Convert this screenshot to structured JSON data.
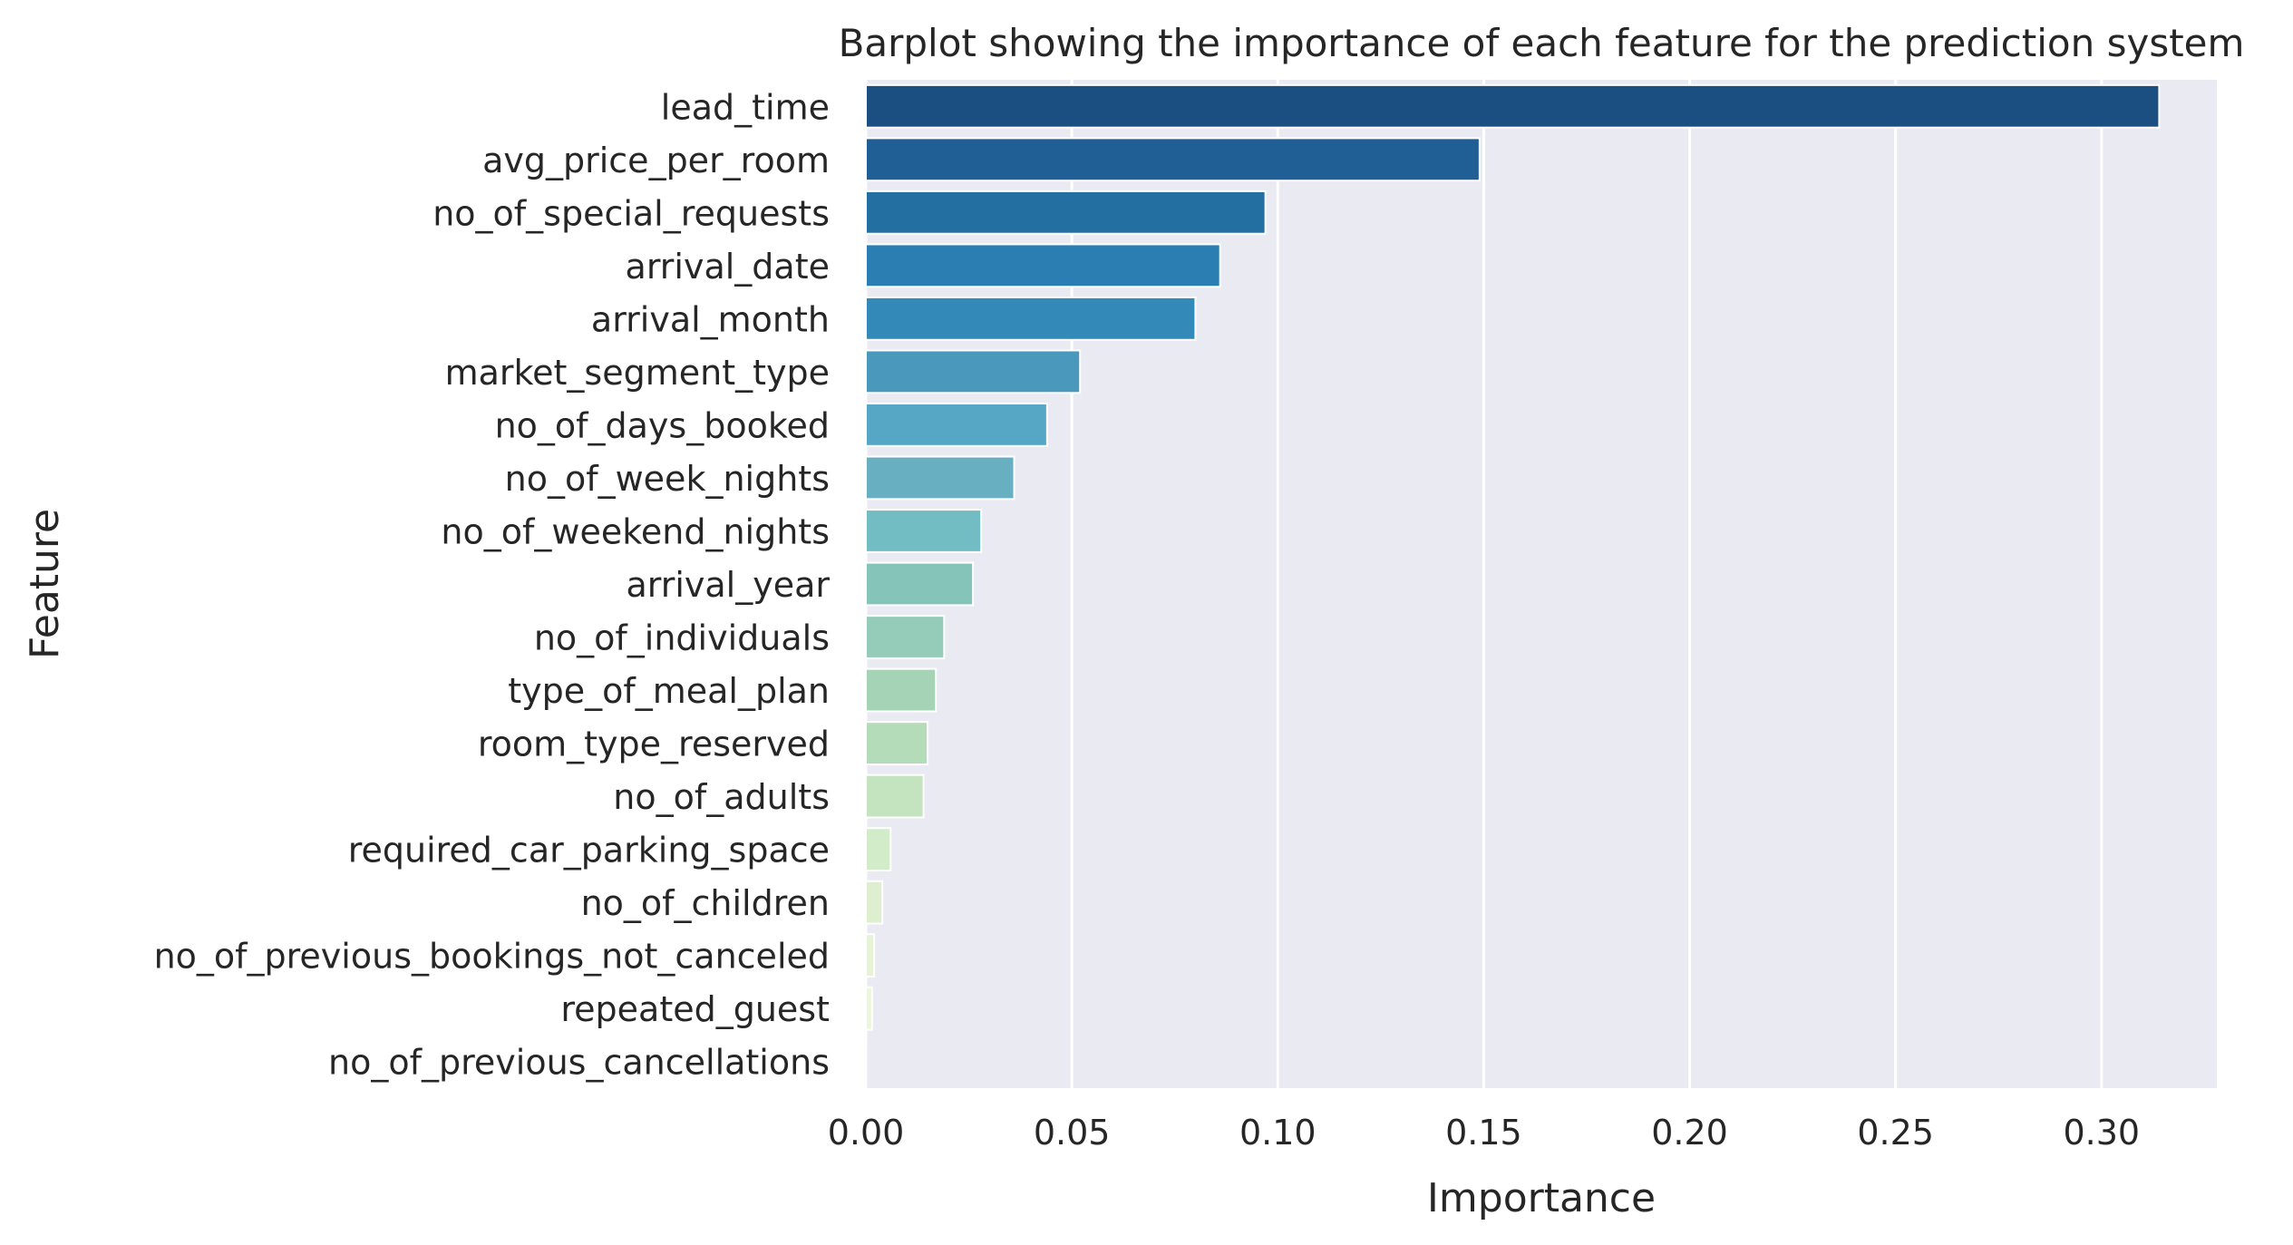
{
  "chart_data": {
    "type": "bar",
    "orientation": "horizontal",
    "title": "Barplot showing the importance of each feature for the prediction system",
    "xlabel": "Importance",
    "ylabel": "Feature",
    "xlim": [
      0,
      0.328
    ],
    "x_ticks": [
      0.0,
      0.05,
      0.1,
      0.15,
      0.2,
      0.25,
      0.3
    ],
    "x_tick_labels": [
      "0.00",
      "0.05",
      "0.10",
      "0.15",
      "0.20",
      "0.25",
      "0.30"
    ],
    "grid": true,
    "categories": [
      "lead_time",
      "avg_price_per_room",
      "no_of_special_requests",
      "arrival_date",
      "arrival_month",
      "market_segment_type",
      "no_of_days_booked",
      "no_of_week_nights",
      "no_of_weekend_nights",
      "arrival_year",
      "no_of_individuals",
      "type_of_meal_plan",
      "room_type_reserved",
      "no_of_adults",
      "required_car_parking_space",
      "no_of_children",
      "no_of_previous_bookings_not_canceled",
      "repeated_guest",
      "no_of_previous_cancellations"
    ],
    "values": [
      0.314,
      0.149,
      0.097,
      0.086,
      0.08,
      0.052,
      0.044,
      0.036,
      0.028,
      0.026,
      0.019,
      0.017,
      0.015,
      0.014,
      0.006,
      0.004,
      0.002,
      0.0015,
      0.0
    ],
    "colors": [
      "#1b4f82",
      "#1f5f96",
      "#236fa1",
      "#2a7eb1",
      "#3389b7",
      "#4a98bb",
      "#56a7c6",
      "#68b0c1",
      "#72bdc4",
      "#84c4b9",
      "#95cbb9",
      "#a4d3b5",
      "#b4dcb8",
      "#c3e4bf",
      "#d2ecc9",
      "#deefcf",
      "#e6f3d7",
      "#ecf6de",
      "#f3f9e8"
    ],
    "plot_background": "#eaeaf2",
    "grid_color": "#ffffff"
  }
}
